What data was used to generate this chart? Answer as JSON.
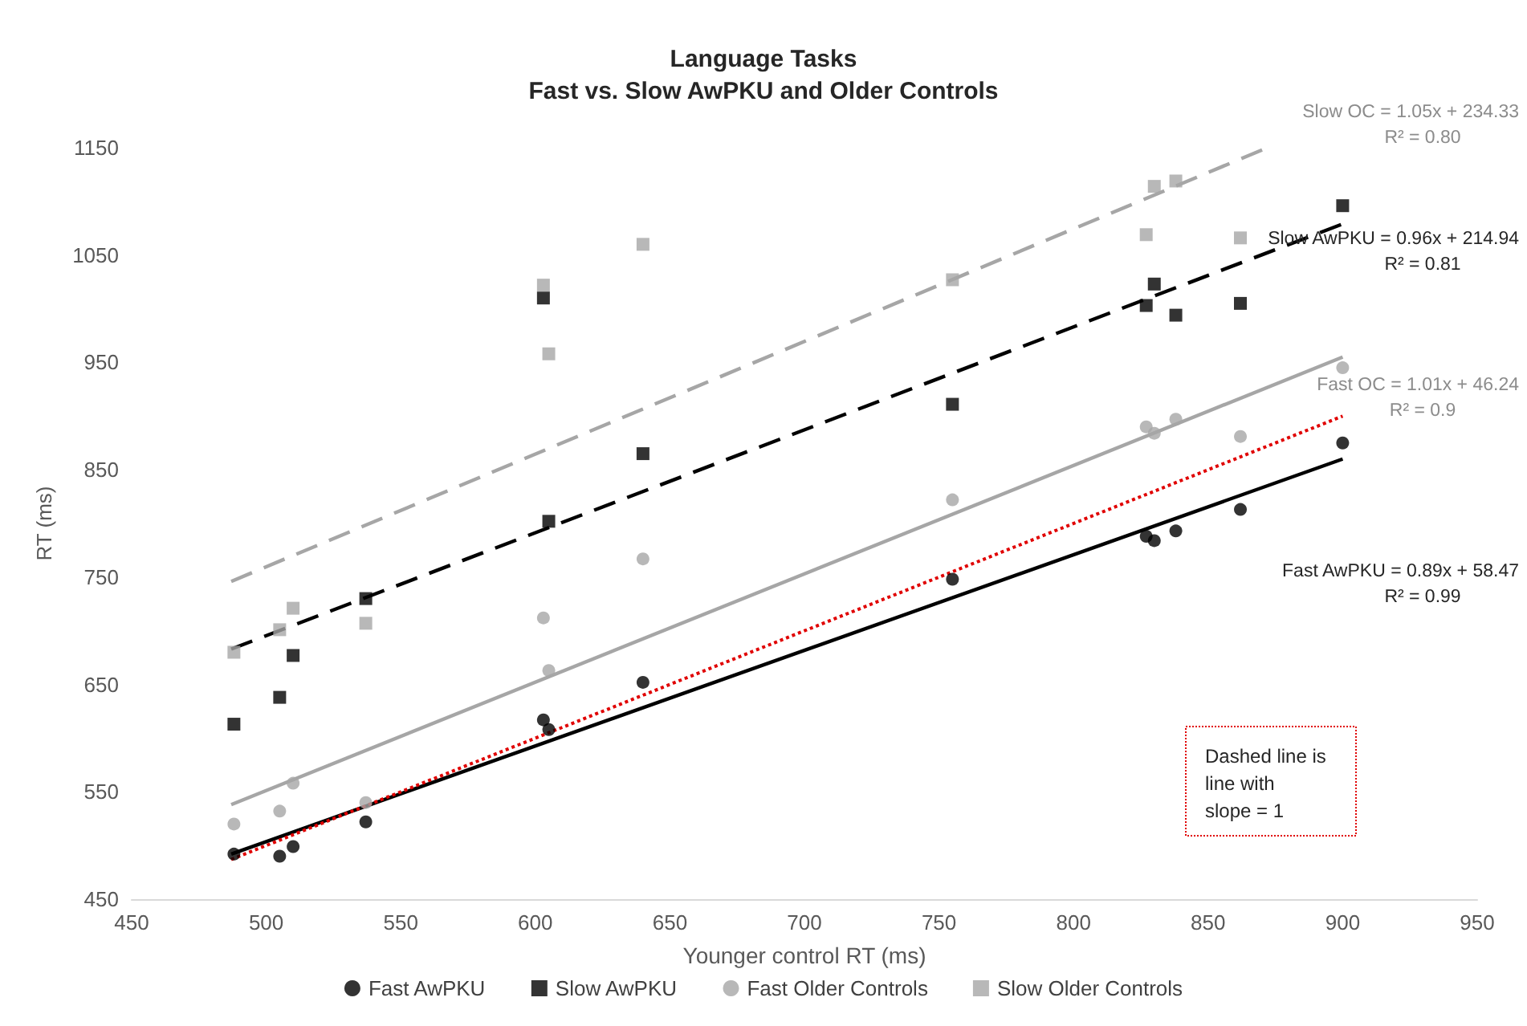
{
  "chart_data": {
    "type": "scatter",
    "title": "Language Tasks\nFast vs. Slow AwPKU and Older Controls",
    "xlabel": "Younger control RT (ms)",
    "ylabel": "RT (ms)",
    "xlim": [
      450,
      950
    ],
    "xticks": [
      450,
      500,
      550,
      600,
      650,
      700,
      750,
      800,
      850,
      900,
      950
    ],
    "ylim": [
      450,
      1150
    ],
    "yticks": [
      450,
      550,
      650,
      750,
      850,
      950,
      1050,
      1150
    ],
    "grid": false,
    "legend": "bottom",
    "series": [
      {
        "name": "Fast AwPKU",
        "color": "#000000",
        "marker": "circle",
        "x": [
          488,
          505,
          510,
          537,
          603,
          605,
          640,
          755,
          827,
          830,
          838,
          862,
          900
        ],
        "values": [
          492,
          490,
          499,
          522,
          617,
          608,
          652,
          748,
          788,
          784,
          793,
          813,
          875
        ]
      },
      {
        "name": "Slow AwPKU",
        "color": "#000000",
        "marker": "square",
        "x": [
          488,
          505,
          510,
          537,
          603,
          605,
          640,
          755,
          827,
          830,
          838,
          862,
          900
        ],
        "values": [
          613,
          638,
          677,
          730,
          1010,
          802,
          865,
          911,
          1003,
          1023,
          994,
          1005,
          1096
        ]
      },
      {
        "name": "Fast Older Controls",
        "color": "#a6a6a6",
        "marker": "circle",
        "x": [
          488,
          505,
          510,
          537,
          603,
          605,
          640,
          755,
          827,
          830,
          838,
          862,
          900
        ],
        "values": [
          520,
          532,
          558,
          540,
          712,
          663,
          767,
          822,
          890,
          884,
          897,
          881,
          945
        ]
      },
      {
        "name": "Slow Older Controls",
        "color": "#a6a6a6",
        "marker": "square",
        "x": [
          488,
          505,
          510,
          537,
          603,
          605,
          640,
          755,
          827,
          830,
          838,
          862
        ],
        "values": [
          680,
          701,
          721,
          707,
          1022,
          958,
          1060,
          1027,
          1069,
          1114,
          1119,
          1066
        ]
      },
      {
        "type": "line",
        "color": "#000000",
        "line_style": "solid",
        "x": [
          487,
          900
        ],
        "values": [
          492,
          860
        ]
      },
      {
        "type": "line",
        "color": "#000000",
        "line_style": "dashed",
        "x": [
          487,
          900
        ],
        "values": [
          683,
          1079
        ]
      },
      {
        "type": "line",
        "color": "#a6a6a6",
        "line_style": "solid",
        "x": [
          487,
          900
        ],
        "values": [
          538,
          955
        ]
      },
      {
        "type": "line",
        "color": "#a6a6a6",
        "line_style": "dashed",
        "x": [
          487,
          872
        ],
        "values": [
          746,
          1150
        ]
      },
      {
        "type": "line",
        "color": "#e00000",
        "line_style": "dotted",
        "x": [
          487,
          900
        ],
        "values": [
          487,
          900
        ]
      }
    ],
    "annotations": [
      "Slow OC = 1.05x + 234.33\nR² = 0.80",
      "Slow AwPKU = 0.96x + 214.94\nR² = 0.81",
      "Fast OC = 1.01x + 46.24\nR² = 0.9",
      "Fast AwPKU = 0.89x + 58.47\nR² = 0.99",
      "Dashed line is\nline with\nslope = 1"
    ]
  }
}
